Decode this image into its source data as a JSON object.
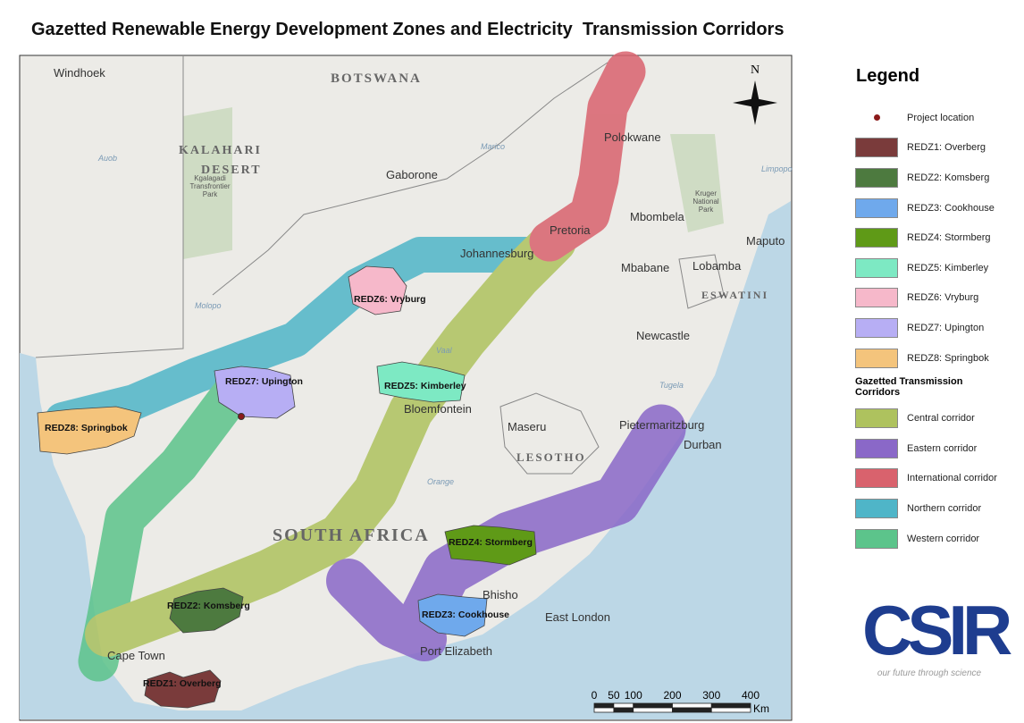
{
  "title": "Gazetted Renewable Energy Development Zones and Electricity  Transmission Corridors",
  "map": {
    "north": "N",
    "labels": [
      "Windhoek",
      "BOTSWANA",
      "KALAHARI",
      "DESERT",
      "Gaborone",
      "Kgalagadi Transfrontier Park",
      "Polokwane",
      "Kruger National Park",
      "Pretoria",
      "Johannesburg",
      "Mbombela",
      "Maputo",
      "Mbabane",
      "Lobamba",
      "ESWATINI",
      "Newcastle",
      "Bloemfontein",
      "Maseru",
      "LESOTHO",
      "Pietermaritzburg",
      "Durban",
      "SOUTH AFRICA",
      "Bhisho",
      "East London",
      "Port Elizabeth",
      "Cape Town"
    ],
    "rivers": [
      "Auob",
      "Molopo",
      "Vaal",
      "Orange",
      "Tugela",
      "Limpopo",
      "Marico"
    ],
    "zones": [
      "REDZ1: Overberg",
      "REDZ2: Komsberg",
      "REDZ3: Cookhouse",
      "REDZ4: Stormberg",
      "REDZ5: Kimberley",
      "REDZ6: Vryburg",
      "REDZ7: Upington",
      "REDZ8: Springbok"
    ],
    "scale": {
      "ticks": [
        0,
        50,
        100,
        200,
        300,
        400
      ],
      "unit": "Km"
    }
  },
  "legend": {
    "title": "Legend",
    "items": [
      {
        "label": "Project location",
        "color": "#8b1a1a"
      },
      {
        "label": "REDZ1: Overberg",
        "color": "#7a3b3b"
      },
      {
        "label": "REDZ2: Komsberg",
        "color": "#4d7a3f"
      },
      {
        "label": "REDZ3: Cookhouse",
        "color": "#6fa9ec"
      },
      {
        "label": "REDZ4: Stormberg",
        "color": "#5f9a17"
      },
      {
        "label": "REDZ5: Kimberley",
        "color": "#7de9c3"
      },
      {
        "label": "REDZ6: Vryburg",
        "color": "#f6b8ca"
      },
      {
        "label": "REDZ7: Upington",
        "color": "#b7aef4"
      },
      {
        "label": "REDZ8: Springbok",
        "color": "#f4c47c"
      }
    ],
    "corridor_heading": "Gazetted Transmission Corridors",
    "corridors": [
      {
        "label": "Central corridor",
        "color": "#aec25e"
      },
      {
        "label": "Eastern corridor",
        "color": "#8a68c8"
      },
      {
        "label": "International corridor",
        "color": "#d9626d"
      },
      {
        "label": "Northern corridor",
        "color": "#4fb5c8"
      },
      {
        "label": "Western corridor",
        "color": "#5cc48b"
      }
    ]
  },
  "logo": {
    "name": "CSIR",
    "tagline": "our future through science"
  }
}
